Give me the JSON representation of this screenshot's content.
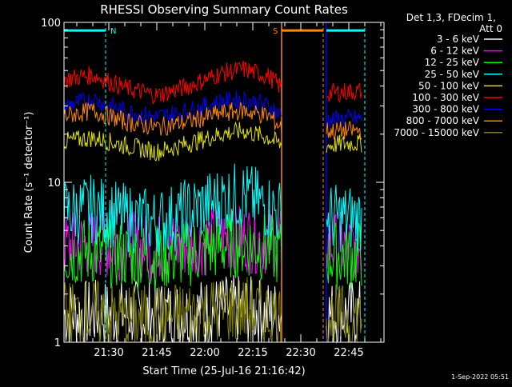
{
  "chart_data": {
    "type": "line",
    "title": "RHESSI Observing Summary Count Rates",
    "xlabel": "Start Time (25-Jul-16 21:16:42)",
    "ylabel": "Count Rate (s⁻¹ detector⁻¹)",
    "yscale": "log",
    "ylim": [
      1,
      100
    ],
    "yticks": [
      1,
      10,
      100
    ],
    "xlim": [
      "21:16",
      "22:56"
    ],
    "xticks": [
      "21:30",
      "21:45",
      "22:00",
      "22:15",
      "22:30",
      "22:45"
    ],
    "grid": false,
    "legend_position": "right",
    "legend_header": [
      "Det 1,3, FDecim 1,",
      "Att 0"
    ],
    "footer_date": "1-Sep-2022 05:51",
    "markers": [
      {
        "label": "N",
        "type": "night",
        "color": "#00ffff",
        "from": "21:16",
        "to": "21:29",
        "level": 89
      },
      {
        "label": "S",
        "type": "saa",
        "color": "#ff8800",
        "from": "22:24",
        "to": "22:37",
        "level": 89
      },
      {
        "label": "",
        "type": "night",
        "color": "#00ffff",
        "from": "22:38",
        "to": "22:50",
        "level": 89
      }
    ],
    "data_gap": [
      "22:24",
      "22:38"
    ],
    "x": [
      "21:16",
      "21:25",
      "21:35",
      "21:45",
      "21:55",
      "22:05",
      "22:12",
      "22:20",
      "22:24",
      "22:38",
      "22:45",
      "22:49"
    ],
    "series": [
      {
        "name": "3 - 6 keV",
        "color": "#ffffff",
        "values": [
          1.5,
          1.5,
          1.5,
          1.5,
          1.5,
          1.6,
          1.6,
          1.5,
          1.5,
          1.5,
          1.5,
          1.5
        ]
      },
      {
        "name": "6 - 12 keV",
        "color": "#ff00ff",
        "values": [
          4.0,
          4.2,
          4.0,
          3.9,
          4.1,
          4.4,
          4.5,
          4.3,
          4.1,
          4.0,
          4.0,
          4.0
        ]
      },
      {
        "name": "12 - 25 keV",
        "color": "#00ff00",
        "values": [
          3.6,
          3.7,
          3.5,
          3.4,
          3.6,
          4.0,
          4.2,
          3.9,
          3.6,
          3.5,
          3.5,
          3.5
        ]
      },
      {
        "name": "25 - 50 keV",
        "color": "#00ffff",
        "values": [
          6.5,
          6.8,
          6.0,
          5.6,
          6.5,
          7.8,
          8.3,
          7.0,
          6.3,
          6.0,
          6.0,
          6.0
        ]
      },
      {
        "name": "50 - 100 keV",
        "color": "#e0e000",
        "values": [
          18,
          19,
          17,
          15.5,
          17.5,
          20,
          21,
          19,
          17,
          17,
          17.5,
          17.5
        ]
      },
      {
        "name": "100 - 300 keV",
        "color": "#ff0000",
        "values": [
          44,
          47,
          39,
          35,
          40,
          48,
          51,
          46,
          39,
          36,
          37,
          37
        ]
      },
      {
        "name": "300 - 800 keV",
        "color": "#0000ff",
        "values": [
          30,
          33,
          28,
          25.5,
          28,
          32,
          33,
          30,
          26,
          24.5,
          25,
          25
        ]
      },
      {
        "name": "800 - 7000 keV",
        "color": "#ff8800",
        "values": [
          26,
          28,
          24,
          22,
          24,
          27,
          28,
          26,
          22,
          21,
          21,
          21
        ]
      },
      {
        "name": "7000 - 15000 keV",
        "color": "#808000",
        "values": [
          1.5,
          1.5,
          1.4,
          1.4,
          1.5,
          1.6,
          1.6,
          1.5,
          1.4,
          1.4,
          1.4,
          1.4
        ]
      }
    ]
  }
}
